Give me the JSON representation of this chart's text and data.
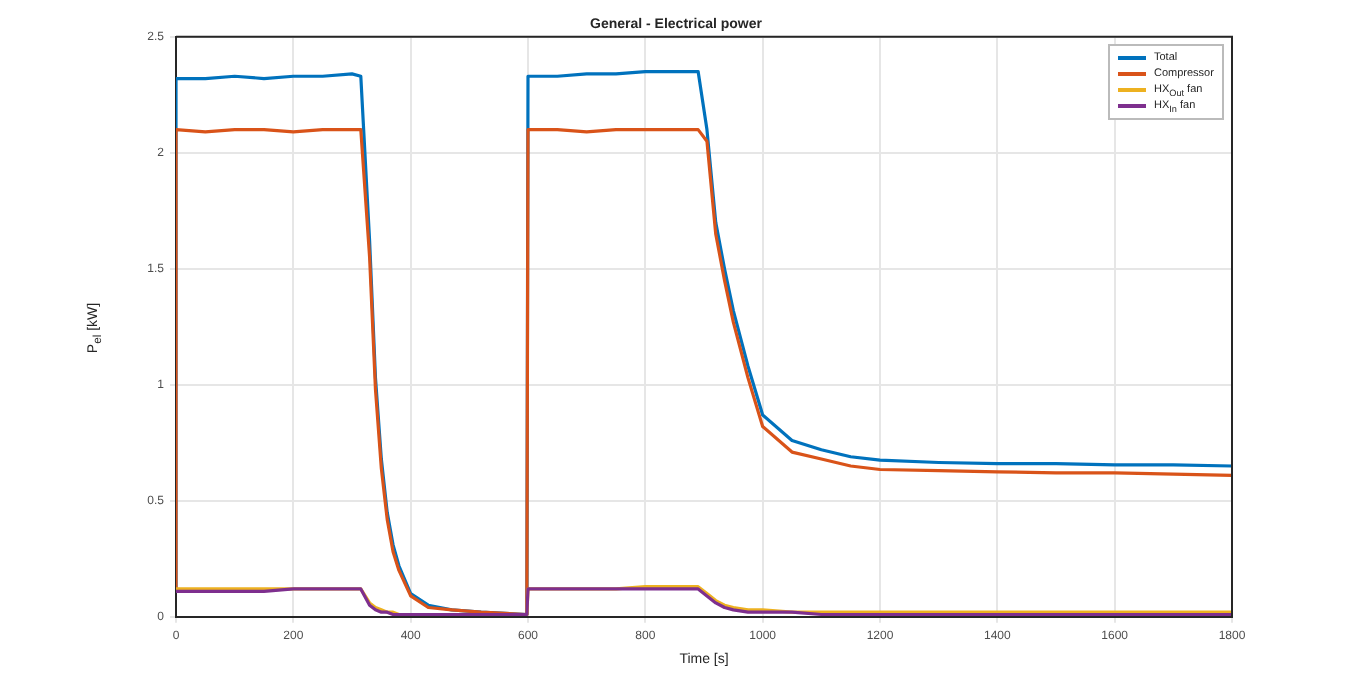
{
  "chart_data": {
    "type": "line",
    "title": "General - Electrical power",
    "xlabel": "Time [s]",
    "ylabel": "P$_{el}$ [kW]",
    "x": [
      0,
      0,
      50,
      100,
      150,
      200,
      250,
      300,
      315,
      330,
      340,
      350,
      360,
      370,
      380,
      400,
      430,
      470,
      520,
      598,
      600,
      650,
      700,
      750,
      800,
      850,
      890,
      905,
      920,
      935,
      950,
      975,
      1000,
      1050,
      1100,
      1150,
      1200,
      1300,
      1400,
      1500,
      1600,
      1700,
      1800
    ],
    "series": [
      {
        "name": "Total",
        "color": "#0072bd",
        "values": [
          0.11,
          2.32,
          2.32,
          2.33,
          2.32,
          2.33,
          2.33,
          2.34,
          2.33,
          1.62,
          1.03,
          0.68,
          0.45,
          0.31,
          0.22,
          0.1,
          0.05,
          0.03,
          0.02,
          0.01,
          2.33,
          2.33,
          2.34,
          2.34,
          2.35,
          2.35,
          2.35,
          2.1,
          1.7,
          1.5,
          1.32,
          1.08,
          0.87,
          0.76,
          0.72,
          0.69,
          0.675,
          0.665,
          0.66,
          0.66,
          0.655,
          0.655,
          0.65
        ]
      },
      {
        "name": "Compressor",
        "color": "#d95319",
        "values": [
          0.11,
          2.1,
          2.09,
          2.1,
          2.1,
          2.09,
          2.1,
          2.1,
          2.1,
          1.55,
          0.98,
          0.64,
          0.42,
          0.28,
          0.2,
          0.09,
          0.04,
          0.03,
          0.02,
          0.01,
          2.1,
          2.1,
          2.09,
          2.1,
          2.1,
          2.1,
          2.1,
          2.05,
          1.65,
          1.45,
          1.27,
          1.03,
          0.82,
          0.71,
          0.68,
          0.65,
          0.635,
          0.63,
          0.625,
          0.62,
          0.62,
          0.615,
          0.61
        ]
      },
      {
        "name": "HX$_{Out}$ fan",
        "color": "#edb120",
        "values": [
          0.11,
          0.12,
          0.12,
          0.12,
          0.12,
          0.12,
          0.12,
          0.12,
          0.12,
          0.06,
          0.04,
          0.03,
          0.02,
          0.02,
          0.01,
          0.01,
          0.01,
          0.01,
          0.01,
          0.01,
          0.12,
          0.12,
          0.12,
          0.12,
          0.13,
          0.13,
          0.13,
          0.1,
          0.07,
          0.05,
          0.04,
          0.03,
          0.03,
          0.02,
          0.02,
          0.02,
          0.02,
          0.02,
          0.02,
          0.02,
          0.02,
          0.02,
          0.02
        ]
      },
      {
        "name": "HX$_{In}$ fan",
        "color": "#7e2f8e",
        "values": [
          0.11,
          0.11,
          0.11,
          0.11,
          0.11,
          0.12,
          0.12,
          0.12,
          0.12,
          0.05,
          0.03,
          0.02,
          0.02,
          0.01,
          0.01,
          0.01,
          0.01,
          0.01,
          0.01,
          0.01,
          0.12,
          0.12,
          0.12,
          0.12,
          0.12,
          0.12,
          0.12,
          0.09,
          0.06,
          0.04,
          0.03,
          0.02,
          0.02,
          0.02,
          0.01,
          0.01,
          0.01,
          0.01,
          0.01,
          0.01,
          0.01,
          0.01,
          0.01
        ]
      }
    ],
    "xlim": [
      0,
      1800
    ],
    "xticks": [
      0,
      200,
      400,
      600,
      800,
      1000,
      1200,
      1400,
      1600,
      1800
    ],
    "ylim": [
      0,
      2.5
    ],
    "yticks": [
      0,
      0.5,
      1,
      1.5,
      2,
      2.5
    ],
    "grid": true,
    "legend": "top right",
    "marker": "none",
    "line_style": "solid"
  }
}
